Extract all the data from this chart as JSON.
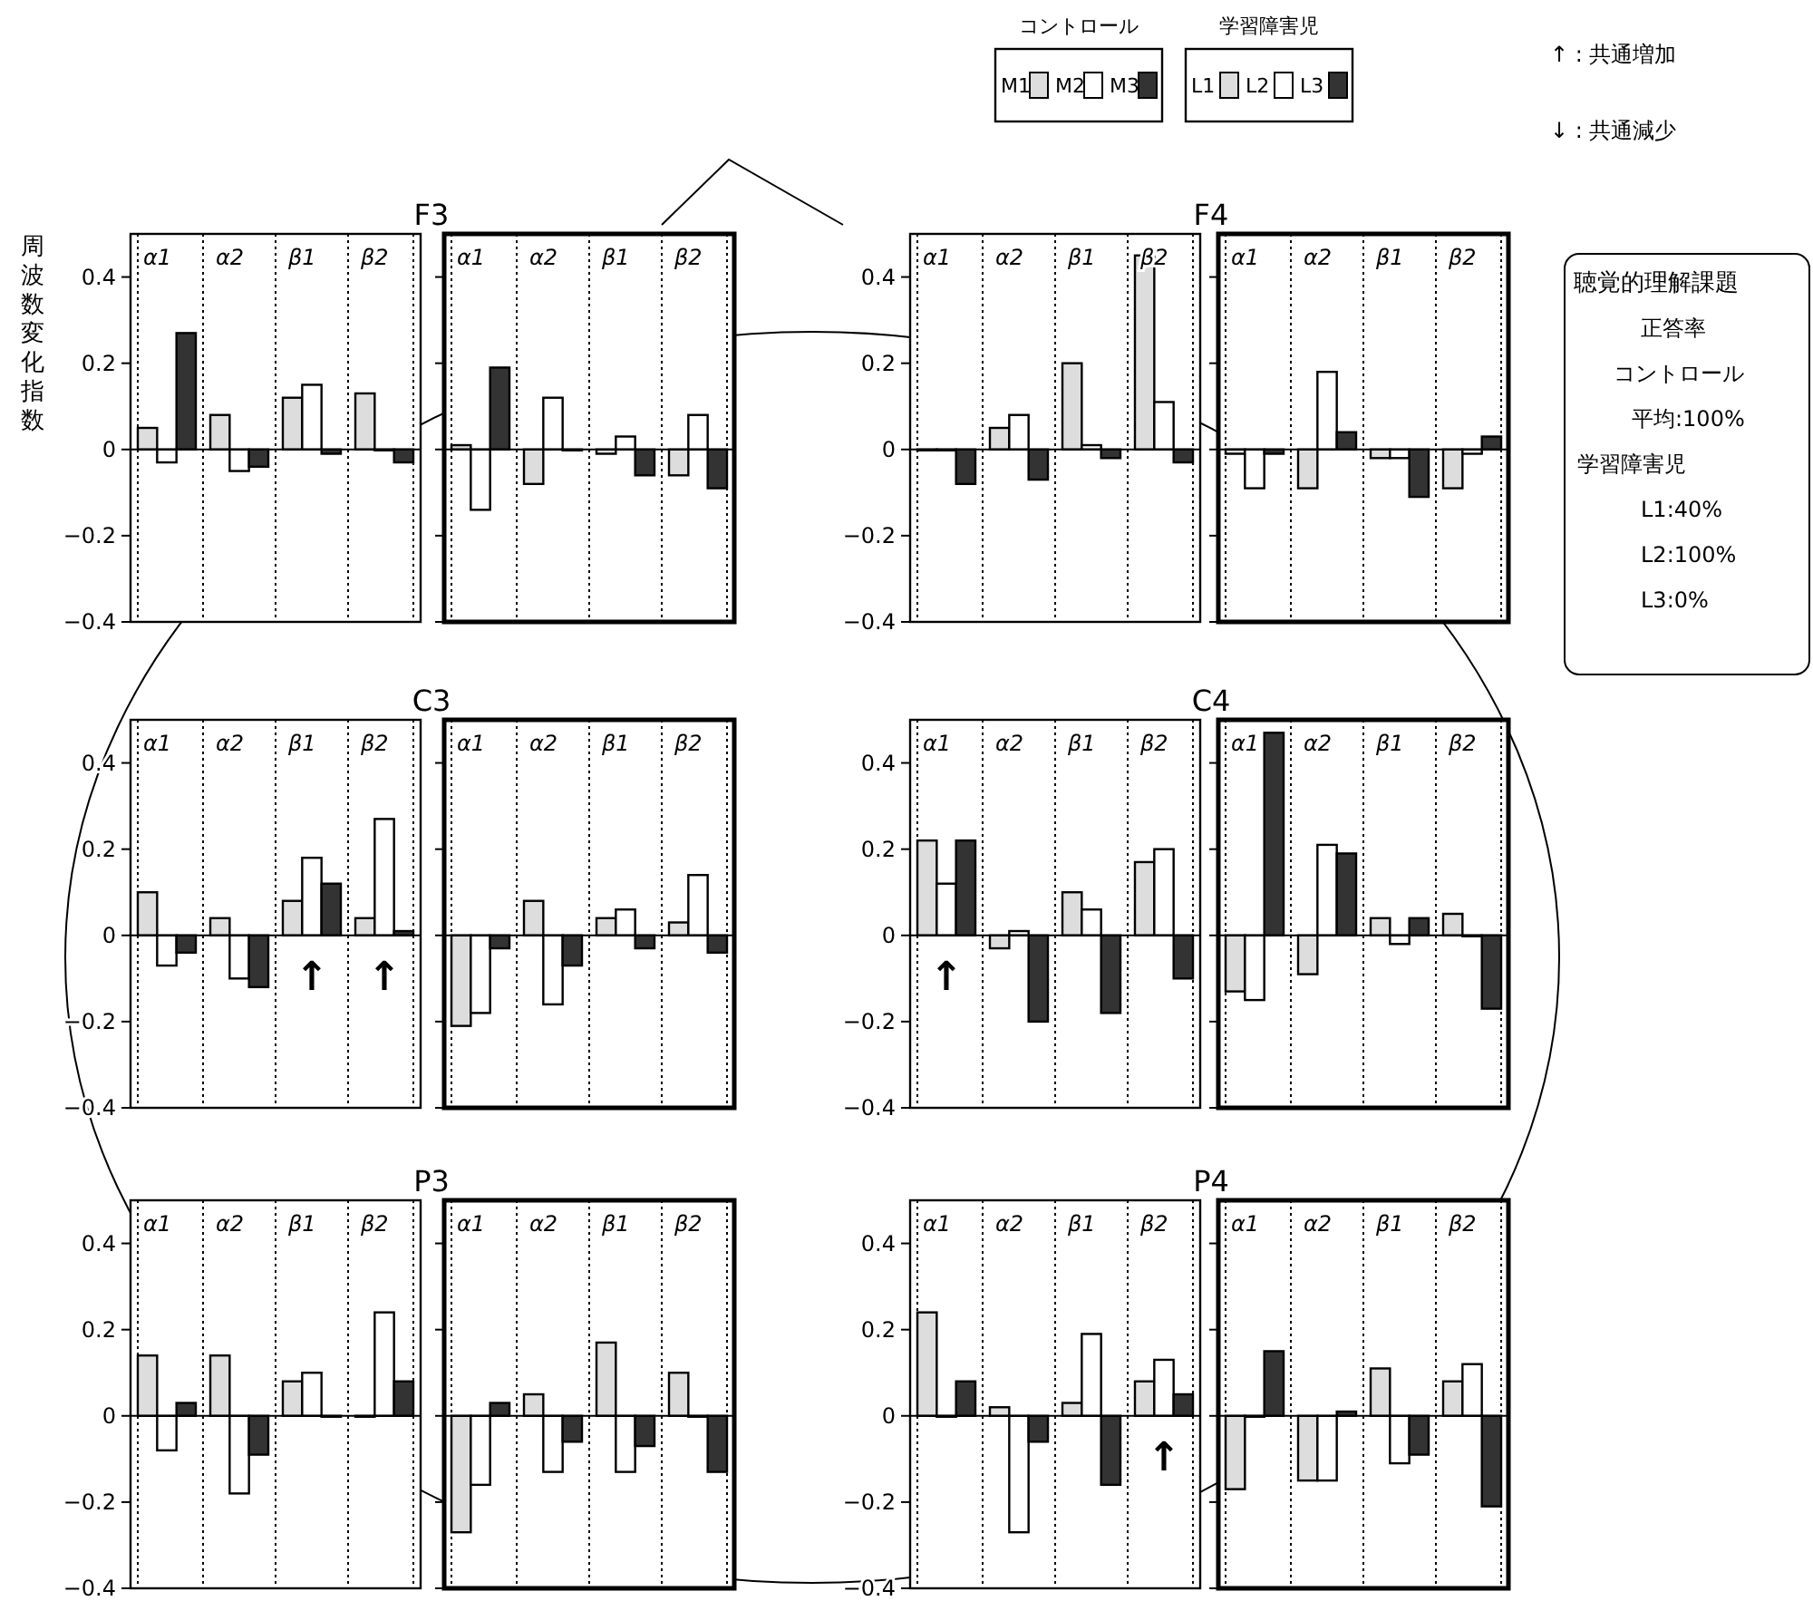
{
  "chart_data": [
    {
      "type": "bar",
      "title": "F3",
      "ylabel": "周波数変化指数",
      "legend_title": "コントロール",
      "legend": "top right",
      "grid": "x",
      "categories": [
        "α1",
        "α2",
        "β1",
        "β2"
      ],
      "ylim": [
        -0.4,
        0.5
      ],
      "yticks": [
        -0.4,
        -0.2,
        0,
        0.2,
        0.4
      ],
      "series": [
        {
          "name": "M1",
          "color": "#dddddd",
          "values": [
            0.05,
            0.08,
            0.12,
            0.13
          ]
        },
        {
          "name": "M2",
          "color": "#ffffff",
          "values": [
            -0.03,
            -0.05,
            0.15,
            0
          ]
        },
        {
          "name": "M3",
          "color": "#333333",
          "values": [
            0.27,
            -0.04,
            -0.01,
            -0.03
          ]
        }
      ]
    },
    {
      "type": "bar",
      "legend_title": "学習障害児",
      "legend": "top right",
      "grid": "x",
      "tick_labels": "x",
      "categories": [
        "α1",
        "α2",
        "β1",
        "β2"
      ],
      "ylim": [
        -0.4,
        0.5
      ],
      "yticks": [
        -0.4,
        -0.2,
        0,
        0.2,
        0.4
      ],
      "series": [
        {
          "name": "L1",
          "color": "#dddddd",
          "values": [
            0.01,
            -0.08,
            -0.01,
            -0.06
          ]
        },
        {
          "name": "L2",
          "color": "#ffffff",
          "values": [
            -0.14,
            0.12,
            0.03,
            0.08
          ]
        },
        {
          "name": "L3",
          "color": "#333333",
          "values": [
            0.19,
            0,
            -0.06,
            -0.09
          ]
        }
      ]
    },
    {
      "type": "bar",
      "title": "F4",
      "grid": "x",
      "categories": [
        "α1",
        "α2",
        "β1",
        "β2"
      ],
      "ylim": [
        -0.4,
        0.5
      ],
      "yticks": [
        -0.4,
        -0.2,
        0,
        0.2,
        0.4
      ],
      "series": [
        {
          "color": "#dddddd",
          "values": [
            0,
            0.05,
            0.2,
            0.45
          ]
        },
        {
          "color": "#ffffff",
          "values": [
            0,
            0.08,
            0.01,
            0.11
          ]
        },
        {
          "color": "#333333",
          "values": [
            -0.08,
            -0.07,
            -0.02,
            -0.03
          ]
        }
      ]
    },
    {
      "type": "bar",
      "grid": "x",
      "tick_labels": "x",
      "categories": [
        "α1",
        "α2",
        "β1",
        "β2"
      ],
      "ylim": [
        -0.4,
        0.5
      ],
      "yticks": [
        -0.4,
        -0.2,
        0,
        0.2,
        0.4
      ],
      "series": [
        {
          "color": "#dddddd",
          "values": [
            -0.01,
            -0.09,
            -0.02,
            -0.09
          ]
        },
        {
          "color": "#ffffff",
          "values": [
            -0.09,
            0.18,
            -0.02,
            -0.01
          ]
        },
        {
          "color": "#333333",
          "values": [
            -0.01,
            0.04,
            -0.11,
            0.03
          ]
        }
      ]
    },
    {
      "type": "bar",
      "title": "C3",
      "grid": "x",
      "categories": [
        "α1",
        "α2",
        "β1",
        "β2"
      ],
      "ylim": [
        -0.4,
        0.5
      ],
      "yticks": [
        -0.4,
        -0.2,
        0,
        0.2,
        0.4
      ],
      "annotations": [
        "↑",
        "↑"
      ],
      "series": [
        {
          "color": "#dddddd",
          "values": [
            0.1,
            0.04,
            0.08,
            0.04
          ]
        },
        {
          "color": "#ffffff",
          "values": [
            -0.07,
            -0.1,
            0.18,
            0.27
          ]
        },
        {
          "color": "#333333",
          "values": [
            -0.04,
            -0.12,
            0.12,
            0.01
          ]
        }
      ]
    },
    {
      "type": "bar",
      "grid": "x",
      "tick_labels": "x",
      "categories": [
        "α1",
        "α2",
        "β1",
        "β2"
      ],
      "ylim": [
        -0.4,
        0.5
      ],
      "yticks": [
        -0.4,
        -0.2,
        0,
        0.2,
        0.4
      ],
      "series": [
        {
          "color": "#dddddd",
          "values": [
            -0.21,
            0.08,
            0.04,
            0.03
          ]
        },
        {
          "color": "#ffffff",
          "values": [
            -0.18,
            -0.16,
            0.06,
            0.14
          ]
        },
        {
          "color": "#333333",
          "values": [
            -0.03,
            -0.07,
            -0.03,
            -0.04
          ]
        }
      ]
    },
    {
      "type": "bar",
      "title": "C4",
      "grid": "x",
      "categories": [
        "α1",
        "α2",
        "β1",
        "β2"
      ],
      "ylim": [
        -0.4,
        0.5
      ],
      "yticks": [
        -0.4,
        -0.2,
        0,
        0.2,
        0.4
      ],
      "annotations": [
        "↑"
      ],
      "series": [
        {
          "color": "#dddddd",
          "values": [
            0.22,
            -0.03,
            0.1,
            0.17
          ]
        },
        {
          "color": "#ffffff",
          "values": [
            0.12,
            0.01,
            0.06,
            0.2
          ]
        },
        {
          "color": "#333333",
          "values": [
            0.22,
            -0.2,
            -0.18,
            -0.1
          ]
        }
      ]
    },
    {
      "type": "bar",
      "grid": "x",
      "tick_labels": "x",
      "categories": [
        "α1",
        "α2",
        "β1",
        "β2"
      ],
      "ylim": [
        -0.4,
        0.5
      ],
      "yticks": [
        -0.4,
        -0.2,
        0,
        0.2,
        0.4
      ],
      "series": [
        {
          "color": "#dddddd",
          "values": [
            -0.13,
            -0.09,
            0.04,
            0.05
          ]
        },
        {
          "color": "#ffffff",
          "values": [
            -0.15,
            0.21,
            -0.02,
            0
          ]
        },
        {
          "color": "#333333",
          "values": [
            0.47,
            0.19,
            0.04,
            -0.17
          ]
        }
      ]
    },
    {
      "type": "bar",
      "title": "P3",
      "grid": "x",
      "categories": [
        "α1",
        "α2",
        "β1",
        "β2"
      ],
      "ylim": [
        -0.4,
        0.5
      ],
      "yticks": [
        -0.4,
        -0.2,
        0,
        0.2,
        0.4
      ],
      "series": [
        {
          "color": "#dddddd",
          "values": [
            0.14,
            0.14,
            0.08,
            0
          ]
        },
        {
          "color": "#ffffff",
          "values": [
            -0.08,
            -0.18,
            0.1,
            0.24
          ]
        },
        {
          "color": "#333333",
          "values": [
            0.03,
            -0.09,
            0,
            0.08
          ]
        }
      ]
    },
    {
      "type": "bar",
      "grid": "x",
      "tick_labels": "x",
      "categories": [
        "α1",
        "α2",
        "β1",
        "β2"
      ],
      "ylim": [
        -0.4,
        0.5
      ],
      "yticks": [
        -0.4,
        -0.2,
        0,
        0.2,
        0.4
      ],
      "series": [
        {
          "color": "#dddddd",
          "values": [
            -0.27,
            0.05,
            0.17,
            0.1
          ]
        },
        {
          "color": "#ffffff",
          "values": [
            -0.16,
            -0.13,
            -0.13,
            0
          ]
        },
        {
          "color": "#333333",
          "values": [
            0.03,
            -0.06,
            -0.07,
            -0.13
          ]
        }
      ]
    },
    {
      "type": "bar",
      "title": "P4",
      "grid": "x",
      "categories": [
        "α1",
        "α2",
        "β1",
        "β2"
      ],
      "ylim": [
        -0.4,
        0.5
      ],
      "yticks": [
        -0.4,
        -0.2,
        0,
        0.2,
        0.4
      ],
      "annotations": [
        "↑"
      ],
      "series": [
        {
          "color": "#dddddd",
          "values": [
            0.24,
            0.02,
            0.03,
            0.08
          ]
        },
        {
          "color": "#ffffff",
          "values": [
            0,
            -0.27,
            0.19,
            0.13
          ]
        },
        {
          "color": "#333333",
          "values": [
            0.08,
            -0.06,
            -0.16,
            0.05
          ]
        }
      ]
    },
    {
      "type": "bar",
      "grid": "x",
      "tick_labels": "x",
      "categories": [
        "α1",
        "α2",
        "β1",
        "β2"
      ],
      "ylim": [
        -0.4,
        0.5
      ],
      "yticks": [
        -0.4,
        -0.2,
        0,
        0.2,
        0.4
      ],
      "series": [
        {
          "color": "#dddddd",
          "values": [
            -0.17,
            -0.15,
            0.11,
            0.08
          ]
        },
        {
          "color": "#ffffff",
          "values": [
            0,
            -0.15,
            -0.11,
            0.12
          ]
        },
        {
          "color": "#333333",
          "values": [
            0.15,
            0.01,
            -0.09,
            -0.21
          ]
        }
      ]
    },
    {
      "type": "other",
      "annotations": [
        "↑ : 共通増加",
        "↓ : 共通減少"
      ]
    },
    {
      "type": "other",
      "title": "聴覚的理解課題",
      "annotations": [
        "正答率",
        "コントロール",
        "平均:100%",
        "学習障害児",
        "L1:40%",
        "L2:100%",
        "L3:0%"
      ]
    }
  ]
}
